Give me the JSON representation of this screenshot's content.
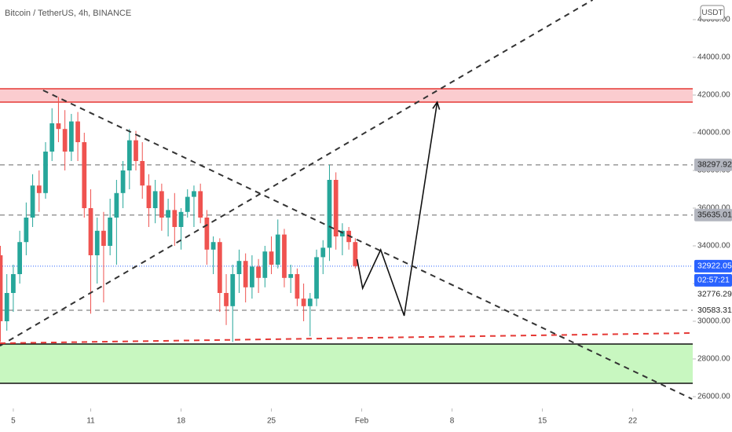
{
  "chart_data": {
    "type": "candlestick",
    "title": "Bitcoin / TetherUS, 4h, BINANCE",
    "currency": "USDT",
    "up_color": "#26a69a",
    "down_color": "#ef5350",
    "xlim": [
      3.97,
      57.65
    ],
    "xticks": [
      5,
      11,
      18,
      25,
      {
        "value": 32,
        "label": "Feb"
      },
      {
        "value": 39,
        "label": "8"
      },
      {
        "value": 46,
        "label": "15"
      },
      {
        "value": 53,
        "label": "22"
      }
    ],
    "ylim": [
      24125,
      47042
    ],
    "yticks": [
      {
        "value": 26000,
        "label": "26000.00"
      },
      {
        "value": 28000,
        "label": "28000.00"
      },
      {
        "value": 30000,
        "label": "30000.00"
      },
      {
        "value": 32000,
        "label": "32000.00"
      },
      {
        "value": 34000,
        "label": "34000.00"
      },
      {
        "value": 36000,
        "label": "36000.00"
      },
      {
        "value": 38000,
        "label": "38000.00"
      },
      {
        "value": 40000,
        "label": "40000.00"
      },
      {
        "value": 42000,
        "label": "42000.00"
      },
      {
        "value": 44000,
        "label": "44000.00"
      },
      {
        "value": 46000,
        "label": "46000.00"
      }
    ],
    "x": [
      4.0,
      4.5,
      5.0,
      5.5,
      6.0,
      6.5,
      7.0,
      7.5,
      8.0,
      8.5,
      9.0,
      9.5,
      10.0,
      10.5,
      11.0,
      11.5,
      12.0,
      12.5,
      13.0,
      13.5,
      14.0,
      14.5,
      15.0,
      15.5,
      16.0,
      16.5,
      17.0,
      17.5,
      18.0,
      18.5,
      19.0,
      19.5,
      20.0,
      20.5,
      21.0,
      21.5,
      22.0,
      22.5,
      23.0,
      23.5,
      24.0,
      24.5,
      25.0,
      25.5,
      26.0,
      26.5,
      27.0,
      27.5,
      28.0,
      28.5,
      29.0,
      29.5,
      30.0,
      30.5,
      31.0,
      31.5
    ],
    "open": [
      33500,
      30000,
      31500,
      32500,
      34200,
      35500,
      37200,
      36800,
      39000,
      40500,
      40200,
      39000,
      40600,
      39500,
      36000,
      33500,
      34800,
      34000,
      35500,
      36800,
      38000,
      39600,
      38500,
      37200,
      36000,
      36900,
      35500,
      35900,
      35000,
      35800,
      36600,
      36900,
      35500,
      33800,
      34200,
      31500,
      30800,
      32500,
      33200,
      31800,
      32900,
      32300,
      33700,
      33000,
      34600,
      32300,
      32500,
      31200,
      30800,
      31200,
      33400,
      33900,
      37500,
      34500,
      34800,
      34200
    ],
    "high": [
      34000,
      32500,
      33000,
      34800,
      36300,
      37800,
      38000,
      39500,
      41300,
      41900,
      41200,
      41000,
      41100,
      40000,
      37000,
      35500,
      35800,
      36500,
      37500,
      38500,
      40200,
      40100,
      39500,
      37800,
      37500,
      37300,
      36500,
      36800,
      36000,
      37000,
      37200,
      37300,
      35900,
      34500,
      34400,
      32500,
      33000,
      33800,
      33600,
      33500,
      33300,
      34000,
      34500,
      35400,
      34900,
      33000,
      32800,
      32000,
      31500,
      33800,
      34300,
      38300,
      37900,
      35200,
      35000,
      34400
    ],
    "low": [
      28900,
      29500,
      30500,
      32000,
      33500,
      35000,
      35800,
      36500,
      38500,
      39500,
      38000,
      38500,
      38500,
      35500,
      30400,
      32000,
      31000,
      33500,
      33000,
      36000,
      37000,
      38000,
      36500,
      35000,
      35200,
      34800,
      34500,
      34000,
      33800,
      35500,
      35000,
      35200,
      33000,
      32500,
      30500,
      29800,
      28900,
      31500,
      31000,
      31200,
      31500,
      31800,
      32500,
      32800,
      31800,
      31500,
      30800,
      30000,
      29200,
      30800,
      32500,
      33200,
      33800,
      33500,
      33800,
      32800
    ],
    "close": [
      30000,
      31500,
      32500,
      34200,
      35500,
      37200,
      36800,
      39000,
      40500,
      40200,
      39000,
      40600,
      39500,
      36000,
      33500,
      34800,
      34000,
      35500,
      36800,
      38000,
      39600,
      38500,
      37200,
      36000,
      36900,
      35500,
      35900,
      35000,
      35800,
      36600,
      36900,
      35500,
      33800,
      34200,
      31500,
      30800,
      32500,
      33200,
      31800,
      32900,
      32300,
      33700,
      33000,
      34600,
      32300,
      32500,
      31200,
      30800,
      31200,
      33400,
      33900,
      37500,
      34500,
      34800,
      34200,
      32922.05
    ],
    "zones": [
      {
        "from": 41625,
        "to": 42333,
        "fill": "#fbcccf",
        "stroke": "#e53935"
      },
      {
        "from": 26708,
        "to": 28792,
        "fill": "#c8f7c0",
        "stroke": "#111111"
      }
    ],
    "trendlines": [
      {
        "x": [
          3.97,
          49.9
        ],
        "y": [
          28700,
          47050
        ],
        "color": "#333333",
        "style": "dashed"
      },
      {
        "x": [
          7.31,
          57.6
        ],
        "y": [
          42250,
          25875
        ],
        "color": "#333333",
        "style": "dashed"
      },
      {
        "x": [
          3.97,
          57.65
        ],
        "y": [
          28833,
          29375
        ],
        "color": "#e53935",
        "style": "dashed"
      },
      {
        "x": [
          31.64,
          32.07,
          33.47,
          35.29,
          37.85
        ],
        "y": [
          33292,
          31750,
          33792,
          30292,
          41625
        ],
        "color": "#111111",
        "style": "solid",
        "arrow": true
      }
    ],
    "price_labels": [
      {
        "value": 38297.92,
        "color": "#b2b5be",
        "line": "dashed"
      },
      {
        "value": 35635.01,
        "color": "#b2b5be",
        "line": "dashed"
      },
      {
        "value": 32922.05,
        "color": "#2962ff",
        "line": "dotted"
      },
      {
        "label": "02:57:21",
        "color": "#2962ff"
      },
      {
        "value": 32776.29,
        "color": "#ffffff"
      },
      {
        "value": 30583.31,
        "color": "#ffffff",
        "line": "dashed"
      }
    ]
  }
}
